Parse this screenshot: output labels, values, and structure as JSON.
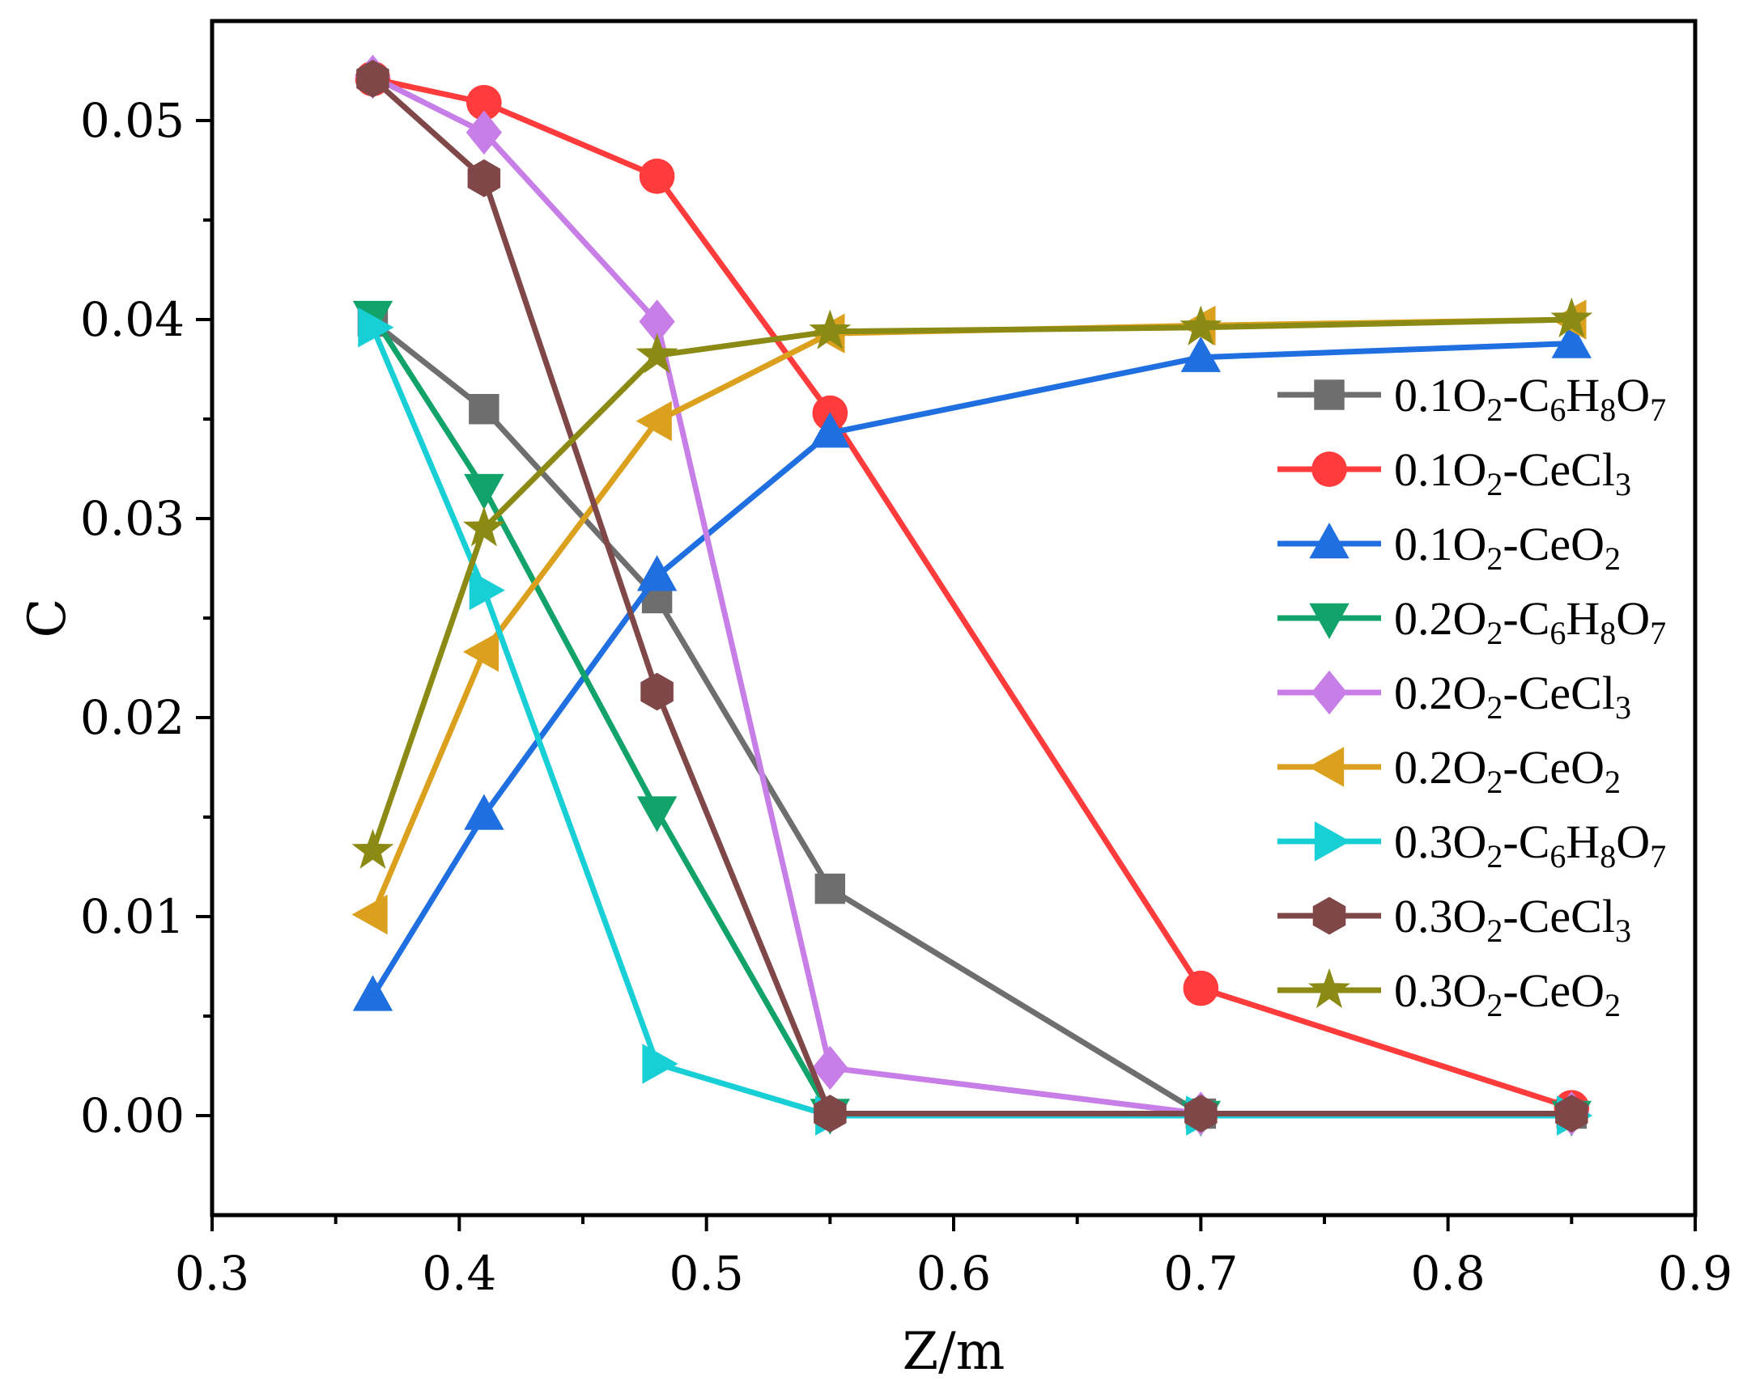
{
  "chart_data": {
    "type": "line",
    "title": "",
    "xlabel": "Z/m",
    "ylabel": "C",
    "xlim": [
      0.3,
      0.9
    ],
    "ylim": [
      -0.005,
      0.055
    ],
    "x_ticks": [
      "0.3",
      "0.4",
      "0.5",
      "0.6",
      "0.7",
      "0.8",
      "0.9"
    ],
    "y_ticks": [
      "0.00",
      "0.01",
      "0.02",
      "0.03",
      "0.04",
      "0.05"
    ],
    "grid": false,
    "legend_position": "right",
    "x": [
      0.365,
      0.41,
      0.48,
      0.55,
      0.7,
      0.85
    ],
    "series": [
      {
        "name": "0.1O2-C6H8O7",
        "label_parts": [
          [
            "0.1O",
            "n"
          ],
          [
            "2",
            "s"
          ],
          [
            "-C",
            "n"
          ],
          [
            "6",
            "s"
          ],
          [
            "H",
            "n"
          ],
          [
            "8",
            "s"
          ],
          [
            "O",
            "n"
          ],
          [
            "7",
            "s"
          ]
        ],
        "color": "#6e6e6e",
        "marker": "square",
        "values": [
          0.0399,
          0.0355,
          0.026,
          0.0114,
          0.0001,
          0.0001
        ]
      },
      {
        "name": "0.1O2-CeCl3",
        "label_parts": [
          [
            "0.1O",
            "n"
          ],
          [
            "2",
            "s"
          ],
          [
            "-CeCl",
            "n"
          ],
          [
            "3",
            "s"
          ]
        ],
        "color": "#ff3b3b",
        "marker": "circle",
        "values": [
          0.0521,
          0.0509,
          0.0472,
          0.0353,
          0.0064,
          0.0004
        ]
      },
      {
        "name": "0.1O2-CeO2",
        "label_parts": [
          [
            "0.1O",
            "n"
          ],
          [
            "2",
            "s"
          ],
          [
            "-CeO",
            "n"
          ],
          [
            "2",
            "s"
          ]
        ],
        "color": "#1f6fe0",
        "marker": "triangle-up",
        "values": [
          0.006,
          0.0151,
          0.0271,
          0.0343,
          0.0381,
          0.0388
        ]
      },
      {
        "name": "0.2O2-C6H8O7",
        "label_parts": [
          [
            "0.2O",
            "n"
          ],
          [
            "2",
            "s"
          ],
          [
            "-C",
            "n"
          ],
          [
            "6",
            "s"
          ],
          [
            "H",
            "n"
          ],
          [
            "8",
            "s"
          ],
          [
            "O",
            "n"
          ],
          [
            "7",
            "s"
          ]
        ],
        "color": "#12a36a",
        "marker": "triangle-down",
        "values": [
          0.0402,
          0.0315,
          0.0153,
          0.0001,
          0.0,
          0.0
        ]
      },
      {
        "name": "0.2O2-CeCl3",
        "label_parts": [
          [
            "0.2O",
            "n"
          ],
          [
            "2",
            "s"
          ],
          [
            "-CeCl",
            "n"
          ],
          [
            "3",
            "s"
          ]
        ],
        "color": "#c77ee6",
        "marker": "diamond",
        "values": [
          0.0522,
          0.0494,
          0.0399,
          0.0024,
          0.0001,
          0.0001
        ]
      },
      {
        "name": "0.2O2-CeO2",
        "label_parts": [
          [
            "0.2O",
            "n"
          ],
          [
            "2",
            "s"
          ],
          [
            "-CeO",
            "n"
          ],
          [
            "2",
            "s"
          ]
        ],
        "color": "#dba01e",
        "marker": "triangle-left",
        "values": [
          0.0101,
          0.0233,
          0.0349,
          0.0393,
          0.0397,
          0.04
        ]
      },
      {
        "name": "0.3O2-C6H8O7",
        "label_parts": [
          [
            "0.3O",
            "n"
          ],
          [
            "2",
            "s"
          ],
          [
            "-C",
            "n"
          ],
          [
            "6",
            "s"
          ],
          [
            "H",
            "n"
          ],
          [
            "8",
            "s"
          ],
          [
            "O",
            "n"
          ],
          [
            "7",
            "s"
          ]
        ],
        "color": "#19cfd6",
        "marker": "triangle-right",
        "values": [
          0.0396,
          0.0264,
          0.0026,
          0.0,
          0.0,
          0.0
        ]
      },
      {
        "name": "0.3O2-CeCl3",
        "label_parts": [
          [
            "0.3O",
            "n"
          ],
          [
            "2",
            "s"
          ],
          [
            "-CeCl",
            "n"
          ],
          [
            "3",
            "s"
          ]
        ],
        "color": "#7f4747",
        "marker": "hexagon",
        "values": [
          0.0521,
          0.0471,
          0.0213,
          0.0001,
          0.0001,
          0.0001
        ]
      },
      {
        "name": "0.3O2-CeO2",
        "label_parts": [
          [
            "0.3O",
            "n"
          ],
          [
            "2",
            "s"
          ],
          [
            "-CeO",
            "n"
          ],
          [
            "2",
            "s"
          ]
        ],
        "color": "#8a8a14",
        "marker": "star",
        "values": [
          0.0133,
          0.0295,
          0.0382,
          0.0394,
          0.0396,
          0.04
        ]
      }
    ]
  }
}
